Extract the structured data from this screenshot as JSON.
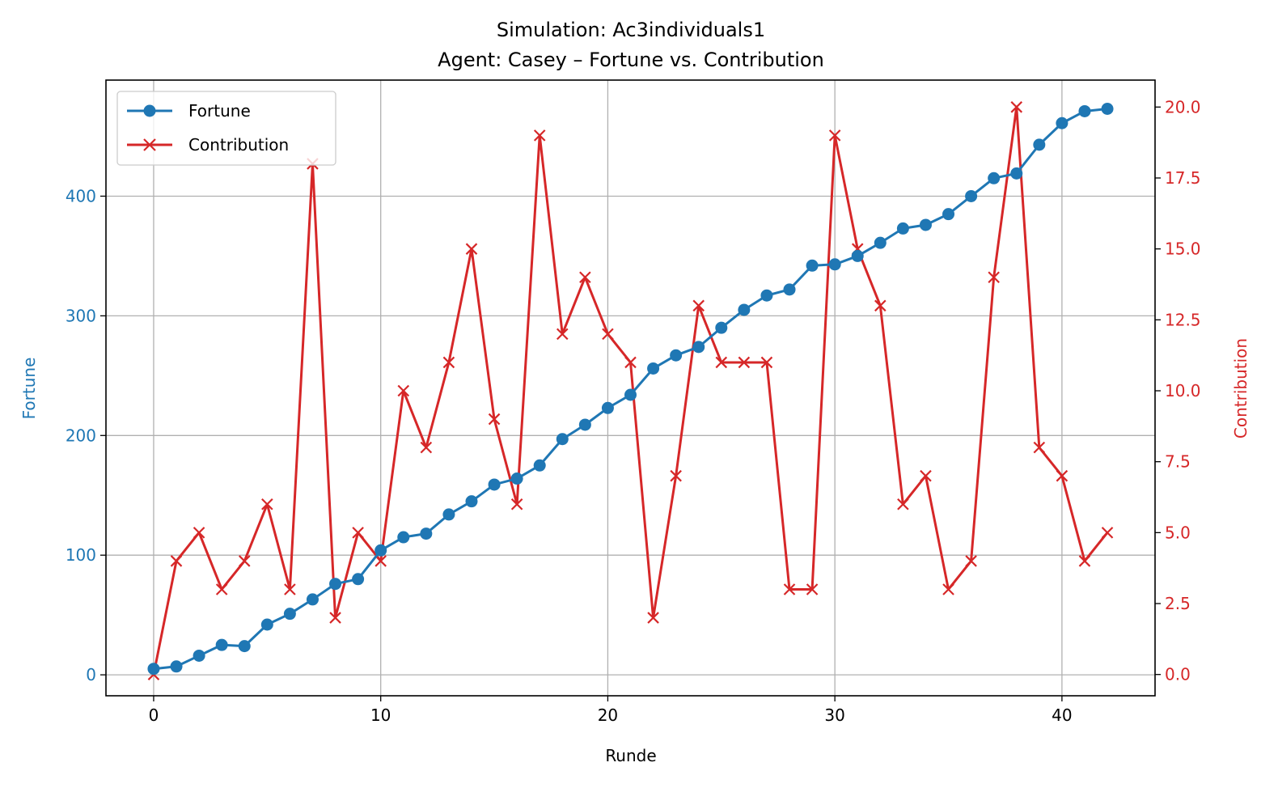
{
  "chart_data": {
    "type": "line",
    "title": "Simulation: Ac3individuals1",
    "subtitle": "Agent: Casey – Fortune vs. Contribution",
    "xlabel": "Runde",
    "ylabel_left": "Fortune",
    "ylabel_right": "Contribution",
    "xlim": [
      -2.1,
      44.1
    ],
    "ylim_left": [
      -17.5,
      497
    ],
    "ylim_right": [
      -0.75,
      20.95
    ],
    "x_ticks": [
      0,
      10,
      20,
      30,
      40
    ],
    "y_left_ticks": [
      0,
      100,
      200,
      300,
      400
    ],
    "y_right_ticks": [
      0.0,
      2.5,
      5.0,
      7.5,
      10.0,
      12.5,
      15.0,
      17.5,
      20.0
    ],
    "grid": true,
    "legend_position": "top-left",
    "colors": {
      "fortune": "#1f77b4",
      "contribution": "#d62728"
    },
    "x": [
      0,
      1,
      2,
      3,
      4,
      5,
      6,
      7,
      8,
      9,
      10,
      11,
      12,
      13,
      14,
      15,
      16,
      17,
      18,
      19,
      20,
      21,
      22,
      23,
      24,
      25,
      26,
      27,
      28,
      29,
      30,
      31,
      32,
      33,
      34,
      35,
      36,
      37,
      38,
      39,
      40,
      41,
      42
    ],
    "series": [
      {
        "name": "Fortune",
        "axis": "left",
        "marker": "circle",
        "values": [
          5,
          7,
          16,
          25,
          24,
          42,
          51,
          63,
          76,
          80,
          104,
          115,
          118,
          134,
          145,
          159,
          164,
          175,
          197,
          209,
          223,
          234,
          256,
          267,
          274,
          290,
          305,
          317,
          322,
          342,
          343,
          350,
          361,
          373,
          376,
          385,
          400,
          415,
          419,
          443,
          461,
          471,
          473
        ]
      },
      {
        "name": "Contribution",
        "axis": "right",
        "marker": "x",
        "values": [
          0,
          4,
          5,
          3,
          4,
          6,
          3,
          18,
          2,
          5,
          4,
          10,
          8,
          11,
          15,
          9,
          6,
          19,
          12,
          14,
          12,
          11,
          2,
          7,
          13,
          11,
          11,
          11,
          3,
          3,
          19,
          15,
          13,
          6,
          7,
          3,
          4,
          14,
          20,
          8,
          7,
          4,
          5
        ]
      }
    ]
  }
}
